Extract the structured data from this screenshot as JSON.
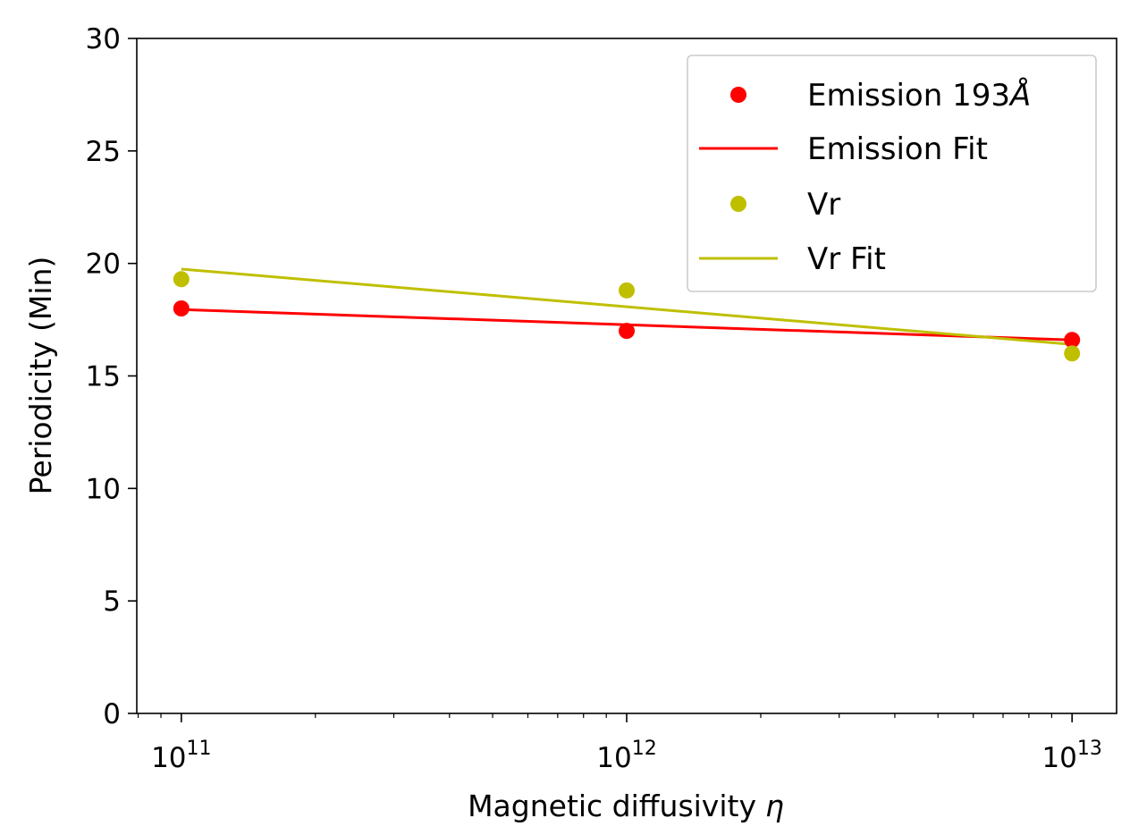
{
  "chart_data": {
    "type": "scatter",
    "title": "",
    "xlabel": "Magnetic diffusivity",
    "xlabel_symbol": "η",
    "ylabel": "Periodicity (Min)",
    "xscale": "log",
    "x_exponent_range": [
      10.9,
      13.1
    ],
    "ylim": [
      0,
      30
    ],
    "y_ticks": [
      0,
      5,
      10,
      15,
      20,
      25,
      30
    ],
    "x_ticks": [
      {
        "exponent": 11,
        "base": "10",
        "power": "11"
      },
      {
        "exponent": 12,
        "base": "10",
        "power": "12"
      },
      {
        "exponent": 13,
        "base": "10",
        "power": "13"
      }
    ],
    "grid": false,
    "legend_position": "top-right",
    "series": [
      {
        "name": "Emission 193",
        "unit_symbol": "Å",
        "kind": "points",
        "color": "#ff0000",
        "x_exponents": [
          11,
          12,
          13
        ],
        "values": [
          18.0,
          17.0,
          16.6
        ]
      },
      {
        "name": "Emission Fit",
        "kind": "line",
        "color": "#ff0000",
        "x_exponents": [
          11,
          13
        ],
        "values": [
          17.95,
          16.6
        ]
      },
      {
        "name": "Vr",
        "kind": "points",
        "color": "#bfbf00",
        "x_exponents": [
          11,
          12,
          13
        ],
        "values": [
          19.3,
          18.8,
          16.0
        ]
      },
      {
        "name": "Vr Fit",
        "kind": "line",
        "color": "#bfbf00",
        "x_exponents": [
          11,
          13
        ],
        "values": [
          19.75,
          16.4
        ]
      }
    ]
  }
}
